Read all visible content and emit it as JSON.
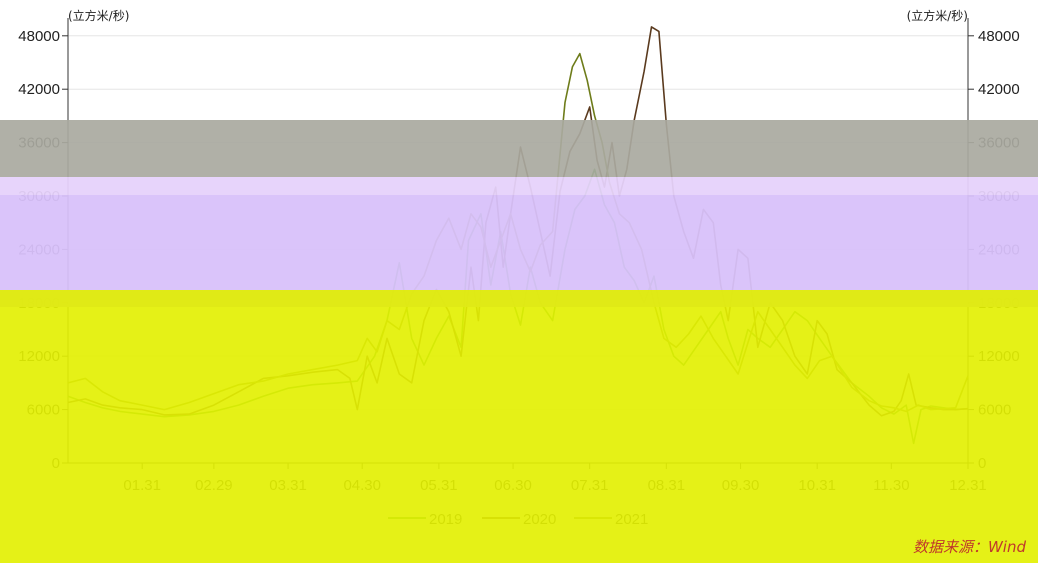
{
  "chart_data": {
    "type": "line",
    "title": "",
    "y_unit_left": "(立方米/秒)",
    "y_unit_right": "(立方米/秒)",
    "ylim": [
      0,
      50000
    ],
    "y_ticks": [
      0,
      6000,
      12000,
      18000,
      24000,
      30000,
      36000,
      42000,
      48000
    ],
    "y_tick_labels": [
      "0",
      "6000",
      "12000",
      "18000",
      "24000",
      "30000",
      "36000",
      "42000",
      "48000"
    ],
    "x_day_range": [
      1,
      365
    ],
    "x_ticks": [
      {
        "label": "01.31",
        "day": 31
      },
      {
        "label": "02.29",
        "day": 60
      },
      {
        "label": "03.31",
        "day": 90
      },
      {
        "label": "04.30",
        "day": 120
      },
      {
        "label": "05.31",
        "day": 151
      },
      {
        "label": "06.30",
        "day": 181
      },
      {
        "label": "07.31",
        "day": 212
      },
      {
        "label": "08.31",
        "day": 243
      },
      {
        "label": "09.30",
        "day": 273
      },
      {
        "label": "10.31",
        "day": 304
      },
      {
        "label": "11.30",
        "day": 334
      },
      {
        "label": "12.31",
        "day": 365
      }
    ],
    "grid": true,
    "legend_position": "bottom",
    "series": [
      {
        "name": "2019",
        "color": "#3a9a2a",
        "points": [
          [
            1,
            7500
          ],
          [
            8,
            6800
          ],
          [
            15,
            6200
          ],
          [
            22,
            5800
          ],
          [
            31,
            5500
          ],
          [
            40,
            5200
          ],
          [
            50,
            5400
          ],
          [
            60,
            5800
          ],
          [
            70,
            6500
          ],
          [
            80,
            7500
          ],
          [
            90,
            8400
          ],
          [
            100,
            8800
          ],
          [
            110,
            9000
          ],
          [
            118,
            9200
          ],
          [
            125,
            12000
          ],
          [
            130,
            16000
          ],
          [
            135,
            22500
          ],
          [
            140,
            14000
          ],
          [
            145,
            11000
          ],
          [
            150,
            14000
          ],
          [
            155,
            16500
          ],
          [
            160,
            13000
          ],
          [
            163,
            25000
          ],
          [
            168,
            28000
          ],
          [
            172,
            20000
          ],
          [
            176,
            26000
          ],
          [
            180,
            19000
          ],
          [
            184,
            15500
          ],
          [
            188,
            22000
          ],
          [
            192,
            18000
          ],
          [
            197,
            16000
          ],
          [
            202,
            24000
          ],
          [
            206,
            28500
          ],
          [
            210,
            30000
          ],
          [
            214,
            33000
          ],
          [
            218,
            29000
          ],
          [
            222,
            27000
          ],
          [
            226,
            22000
          ],
          [
            230,
            20500
          ],
          [
            234,
            18000
          ],
          [
            238,
            21000
          ],
          [
            242,
            15000
          ],
          [
            246,
            12000
          ],
          [
            250,
            11000
          ],
          [
            255,
            13000
          ],
          [
            260,
            15000
          ],
          [
            265,
            17000
          ],
          [
            268,
            14000
          ],
          [
            272,
            11000
          ],
          [
            276,
            15000
          ],
          [
            280,
            14000
          ],
          [
            285,
            13000
          ],
          [
            290,
            15000
          ],
          [
            295,
            17000
          ],
          [
            300,
            16000
          ],
          [
            305,
            14000
          ],
          [
            310,
            12000
          ],
          [
            318,
            9000
          ],
          [
            325,
            7500
          ],
          [
            330,
            6200
          ],
          [
            335,
            5500
          ],
          [
            340,
            6500
          ],
          [
            343,
            2200
          ],
          [
            346,
            6000
          ],
          [
            350,
            6400
          ],
          [
            355,
            6200
          ],
          [
            360,
            6000
          ],
          [
            365,
            6100
          ]
        ]
      },
      {
        "name": "2020",
        "color": "#5a3a1e",
        "points": [
          [
            1,
            6800
          ],
          [
            8,
            7200
          ],
          [
            15,
            6500
          ],
          [
            22,
            6200
          ],
          [
            31,
            6000
          ],
          [
            40,
            5400
          ],
          [
            50,
            5500
          ],
          [
            60,
            6500
          ],
          [
            70,
            8000
          ],
          [
            80,
            9500
          ],
          [
            90,
            9800
          ],
          [
            100,
            10200
          ],
          [
            110,
            10500
          ],
          [
            115,
            9500
          ],
          [
            118,
            6000
          ],
          [
            122,
            12000
          ],
          [
            126,
            9000
          ],
          [
            130,
            14000
          ],
          [
            135,
            10000
          ],
          [
            140,
            9000
          ],
          [
            145,
            16000
          ],
          [
            150,
            19500
          ],
          [
            155,
            17000
          ],
          [
            160,
            12000
          ],
          [
            164,
            22000
          ],
          [
            167,
            16000
          ],
          [
            170,
            27000
          ],
          [
            174,
            31000
          ],
          [
            177,
            22000
          ],
          [
            180,
            28000
          ],
          [
            184,
            35500
          ],
          [
            188,
            31000
          ],
          [
            192,
            26000
          ],
          [
            196,
            21000
          ],
          [
            200,
            30500
          ],
          [
            204,
            35000
          ],
          [
            208,
            37000
          ],
          [
            212,
            40000
          ],
          [
            215,
            34000
          ],
          [
            218,
            31000
          ],
          [
            221,
            36000
          ],
          [
            224,
            30000
          ],
          [
            227,
            33000
          ],
          [
            230,
            38500
          ],
          [
            234,
            44000
          ],
          [
            237,
            49000
          ],
          [
            240,
            48500
          ],
          [
            243,
            38000
          ],
          [
            246,
            30000
          ],
          [
            250,
            26000
          ],
          [
            254,
            23000
          ],
          [
            258,
            28500
          ],
          [
            262,
            27000
          ],
          [
            265,
            20000
          ],
          [
            268,
            16000
          ],
          [
            272,
            24000
          ],
          [
            276,
            23000
          ],
          [
            280,
            13000
          ],
          [
            285,
            18000
          ],
          [
            290,
            16000
          ],
          [
            295,
            12000
          ],
          [
            300,
            10000
          ],
          [
            304,
            16000
          ],
          [
            308,
            14500
          ],
          [
            312,
            10500
          ],
          [
            318,
            9000
          ],
          [
            325,
            6500
          ],
          [
            330,
            5300
          ],
          [
            335,
            5800
          ],
          [
            338,
            7000
          ],
          [
            341,
            10000
          ],
          [
            344,
            6500
          ],
          [
            350,
            6200
          ],
          [
            355,
            6000
          ],
          [
            360,
            6000
          ],
          [
            365,
            6100
          ]
        ]
      },
      {
        "name": "2021",
        "color": "#6e7c1a",
        "points": [
          [
            1,
            9000
          ],
          [
            8,
            9500
          ],
          [
            15,
            8000
          ],
          [
            22,
            7000
          ],
          [
            31,
            6500
          ],
          [
            40,
            6000
          ],
          [
            50,
            6800
          ],
          [
            60,
            7800
          ],
          [
            70,
            8800
          ],
          [
            80,
            9200
          ],
          [
            90,
            10000
          ],
          [
            100,
            10500
          ],
          [
            110,
            11000
          ],
          [
            118,
            11500
          ],
          [
            122,
            14000
          ],
          [
            126,
            12500
          ],
          [
            130,
            16000
          ],
          [
            135,
            15000
          ],
          [
            140,
            19000
          ],
          [
            145,
            21000
          ],
          [
            150,
            25000
          ],
          [
            155,
            27500
          ],
          [
            160,
            24000
          ],
          [
            164,
            28000
          ],
          [
            168,
            26500
          ],
          [
            172,
            22000
          ],
          [
            176,
            25000
          ],
          [
            180,
            28000
          ],
          [
            184,
            24000
          ],
          [
            188,
            21500
          ],
          [
            192,
            24500
          ],
          [
            197,
            26000
          ],
          [
            202,
            40500
          ],
          [
            205,
            44500
          ],
          [
            208,
            46000
          ],
          [
            211,
            43000
          ],
          [
            214,
            39000
          ],
          [
            217,
            36000
          ],
          [
            220,
            31500
          ],
          [
            224,
            28000
          ],
          [
            228,
            27000
          ],
          [
            233,
            24000
          ],
          [
            238,
            18000
          ],
          [
            242,
            14000
          ],
          [
            247,
            13000
          ],
          [
            252,
            14500
          ],
          [
            257,
            16500
          ],
          [
            262,
            14000
          ],
          [
            267,
            12000
          ],
          [
            272,
            10000
          ],
          [
            276,
            13500
          ],
          [
            280,
            17000
          ],
          [
            285,
            15000
          ],
          [
            290,
            13000
          ],
          [
            295,
            11000
          ],
          [
            300,
            9500
          ],
          [
            305,
            11500
          ],
          [
            310,
            12000
          ],
          [
            318,
            8500
          ],
          [
            325,
            7000
          ],
          [
            330,
            6400
          ],
          [
            335,
            6200
          ],
          [
            340,
            5800
          ],
          [
            345,
            6500
          ],
          [
            350,
            6000
          ],
          [
            355,
            6100
          ],
          [
            360,
            6200
          ],
          [
            365,
            9800
          ]
        ]
      }
    ],
    "source_text": "数据来源：Wind"
  }
}
